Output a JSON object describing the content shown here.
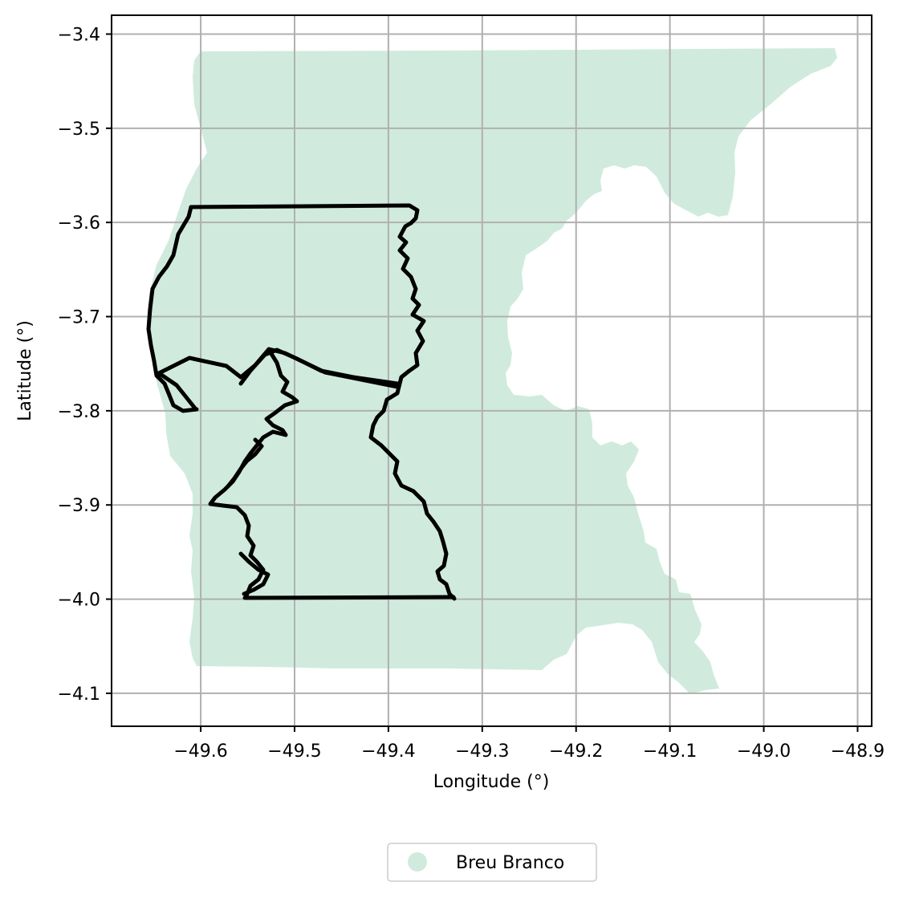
{
  "map": {
    "xlabel": "Longitude (°)",
    "ylabel": "Latitude (°)",
    "x_ticks": [
      {
        "value": -49.6,
        "label": "−49.6"
      },
      {
        "value": -49.5,
        "label": "−49.5"
      },
      {
        "value": -49.4,
        "label": "−49.4"
      },
      {
        "value": -49.3,
        "label": "−49.3"
      },
      {
        "value": -49.2,
        "label": "−49.2"
      },
      {
        "value": -49.1,
        "label": "−49.1"
      },
      {
        "value": -49.0,
        "label": "−49.0"
      },
      {
        "value": -48.9,
        "label": "−48.9"
      }
    ],
    "y_ticks": [
      {
        "value": -3.4,
        "label": "−3.4"
      },
      {
        "value": -3.5,
        "label": "−3.5"
      },
      {
        "value": -3.6,
        "label": "−3.6"
      },
      {
        "value": -3.7,
        "label": "−3.7"
      },
      {
        "value": -3.8,
        "label": "−3.8"
      },
      {
        "value": -3.9,
        "label": "−3.9"
      },
      {
        "value": -4.0,
        "label": "−4.0"
      },
      {
        "value": -4.1,
        "label": "−4.1"
      }
    ],
    "xlim": [
      -49.695,
      -48.885
    ],
    "ylim": [
      -4.135,
      -3.38
    ],
    "grid": true,
    "legend": {
      "placement": "bottom-center",
      "items": [
        {
          "label": "Breu Branco",
          "color": "#d0ebde",
          "marker": "circle"
        }
      ]
    },
    "colors": {
      "region_fill": "#d0ebde",
      "boundary_stroke": "#000000",
      "grid": "#b0b0b0"
    },
    "layers": [
      {
        "name": "Breu Branco",
        "type": "filled-polygon"
      },
      {
        "name": "boundary-outlines",
        "type": "line"
      }
    ]
  }
}
